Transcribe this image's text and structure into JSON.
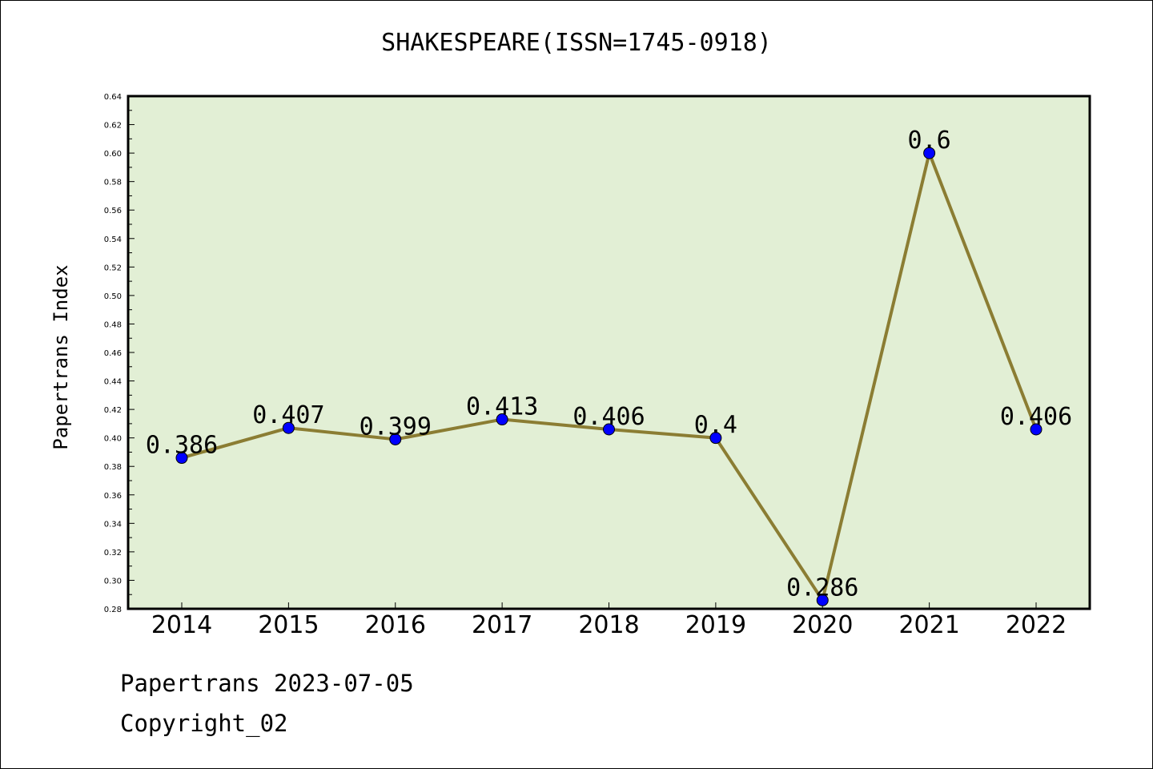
{
  "chart_data": {
    "type": "line",
    "title": "SHAKESPEARE(ISSN=1745-0918)",
    "xlabel": "",
    "ylabel": "Papertrans Index",
    "categories": [
      "2014",
      "2015",
      "2016",
      "2017",
      "2018",
      "2019",
      "2020",
      "2021",
      "2022"
    ],
    "series": [
      {
        "values": [
          0.386,
          0.407,
          0.399,
          0.413,
          0.406,
          0.4,
          0.286,
          0.6,
          0.406
        ]
      }
    ],
    "data_labels": [
      "0.386",
      "0.407",
      "0.399",
      "0.413",
      "0.406",
      "0.4",
      "0.286",
      "0.6",
      "0.406"
    ],
    "ylim": [
      0.28,
      0.64
    ],
    "y_ticks": [
      "0.28",
      "0.30",
      "0.32",
      "0.34",
      "0.36",
      "0.38",
      "0.40",
      "0.42",
      "0.44",
      "0.46",
      "0.48",
      "0.50",
      "0.52",
      "0.54",
      "0.56",
      "0.58",
      "0.60",
      "0.62",
      "0.64"
    ],
    "grid": false,
    "colors": {
      "plot_background": "#e2efd5",
      "line": "#8b7d33",
      "marker": "#0000ff"
    }
  },
  "footer": {
    "line1": "Papertrans 2023-07-05",
    "line2": "Copyright_02"
  }
}
